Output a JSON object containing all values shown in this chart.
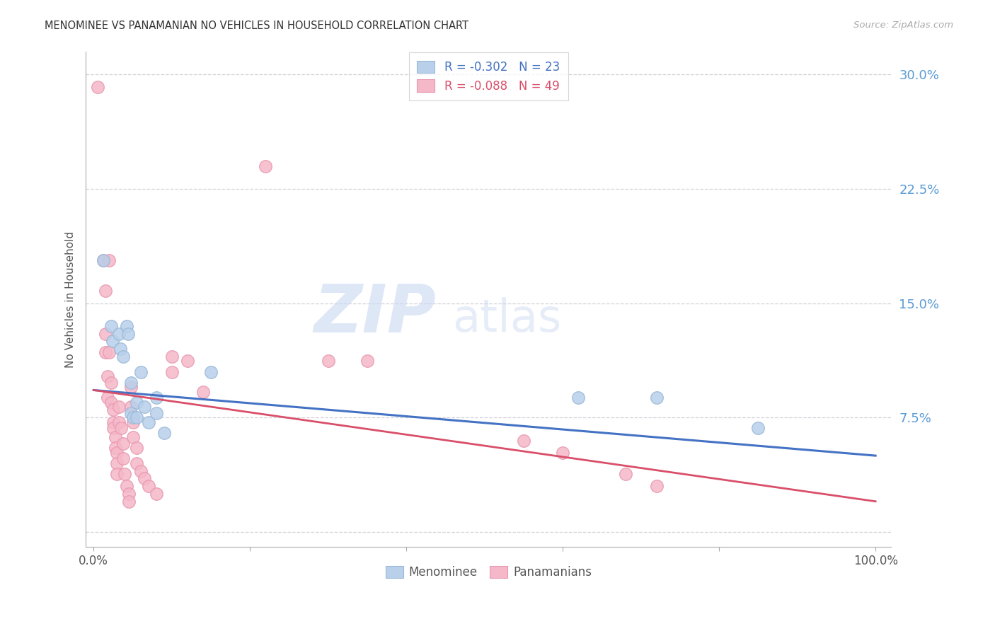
{
  "title": "MENOMINEE VS PANAMANIAN NO VEHICLES IN HOUSEHOLD CORRELATION CHART",
  "source": "Source: ZipAtlas.com",
  "ylabel": "No Vehicles in Household",
  "xlim": [
    -0.01,
    1.02
  ],
  "ylim": [
    -0.01,
    0.315
  ],
  "yticks": [
    0.0,
    0.075,
    0.15,
    0.225,
    0.3
  ],
  "ytick_labels": [
    "",
    "7.5%",
    "15.0%",
    "22.5%",
    "30.0%"
  ],
  "xticks": [
    0.0,
    0.2,
    0.4,
    0.6,
    0.8,
    1.0
  ],
  "xtick_labels": [
    "0.0%",
    "",
    "",
    "",
    "",
    "100.0%"
  ],
  "menominee_R": "-0.302",
  "menominee_N": "23",
  "panamanian_R": "-0.088",
  "panamanian_N": "49",
  "menominee_dot_color": "#b8d0ea",
  "menominee_edge_color": "#9ab8d8",
  "panamanian_dot_color": "#f5b8c8",
  "panamanian_edge_color": "#e898b0",
  "trendline_menominee_color": "#4472c4",
  "trendline_panamanian_color": "#d94f6a",
  "background_color": "#ffffff",
  "grid_color": "#d0d0d8",
  "menominee_points": [
    [
      0.012,
      0.178
    ],
    [
      0.022,
      0.135
    ],
    [
      0.024,
      0.125
    ],
    [
      0.032,
      0.13
    ],
    [
      0.034,
      0.12
    ],
    [
      0.038,
      0.115
    ],
    [
      0.042,
      0.135
    ],
    [
      0.044,
      0.13
    ],
    [
      0.048,
      0.098
    ],
    [
      0.048,
      0.078
    ],
    [
      0.05,
      0.075
    ],
    [
      0.055,
      0.085
    ],
    [
      0.055,
      0.075
    ],
    [
      0.06,
      0.105
    ],
    [
      0.065,
      0.082
    ],
    [
      0.07,
      0.072
    ],
    [
      0.08,
      0.088
    ],
    [
      0.08,
      0.078
    ],
    [
      0.09,
      0.065
    ],
    [
      0.15,
      0.105
    ],
    [
      0.62,
      0.088
    ],
    [
      0.72,
      0.088
    ],
    [
      0.85,
      0.068
    ]
  ],
  "panamanian_points": [
    [
      0.005,
      0.292
    ],
    [
      0.012,
      0.178
    ],
    [
      0.015,
      0.158
    ],
    [
      0.015,
      0.13
    ],
    [
      0.015,
      0.118
    ],
    [
      0.018,
      0.102
    ],
    [
      0.018,
      0.088
    ],
    [
      0.02,
      0.178
    ],
    [
      0.02,
      0.118
    ],
    [
      0.022,
      0.098
    ],
    [
      0.022,
      0.085
    ],
    [
      0.025,
      0.08
    ],
    [
      0.025,
      0.072
    ],
    [
      0.025,
      0.068
    ],
    [
      0.028,
      0.062
    ],
    [
      0.028,
      0.055
    ],
    [
      0.03,
      0.052
    ],
    [
      0.03,
      0.045
    ],
    [
      0.03,
      0.038
    ],
    [
      0.032,
      0.082
    ],
    [
      0.032,
      0.072
    ],
    [
      0.035,
      0.068
    ],
    [
      0.038,
      0.058
    ],
    [
      0.038,
      0.048
    ],
    [
      0.04,
      0.038
    ],
    [
      0.042,
      0.03
    ],
    [
      0.045,
      0.025
    ],
    [
      0.045,
      0.02
    ],
    [
      0.048,
      0.095
    ],
    [
      0.048,
      0.082
    ],
    [
      0.05,
      0.072
    ],
    [
      0.05,
      0.062
    ],
    [
      0.055,
      0.055
    ],
    [
      0.055,
      0.045
    ],
    [
      0.06,
      0.04
    ],
    [
      0.065,
      0.035
    ],
    [
      0.07,
      0.03
    ],
    [
      0.08,
      0.025
    ],
    [
      0.1,
      0.115
    ],
    [
      0.1,
      0.105
    ],
    [
      0.12,
      0.112
    ],
    [
      0.14,
      0.092
    ],
    [
      0.22,
      0.24
    ],
    [
      0.3,
      0.112
    ],
    [
      0.35,
      0.112
    ],
    [
      0.55,
      0.06
    ],
    [
      0.6,
      0.052
    ],
    [
      0.68,
      0.038
    ],
    [
      0.72,
      0.03
    ]
  ],
  "menominee_trendline_x": [
    0.0,
    1.0
  ],
  "menominee_trendline_y": [
    0.093,
    0.05
  ],
  "panamanian_trendline_x": [
    0.0,
    1.0
  ],
  "panamanian_trendline_y": [
    0.093,
    0.02
  ]
}
